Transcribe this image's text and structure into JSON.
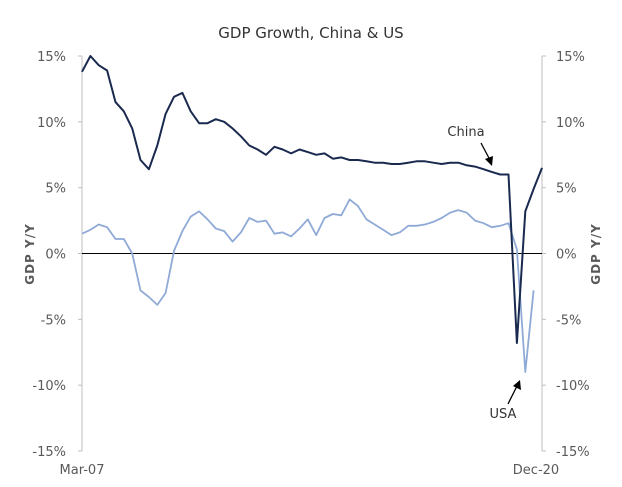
{
  "chart_data": {
    "type": "line",
    "title": "GDP Growth, China & US",
    "ylabel_left": "GDP Y/Y",
    "ylabel_right": "GDP Y/Y",
    "ylim": [
      -15,
      15
    ],
    "yticks": [
      "15%",
      "10%",
      "5%",
      "0%",
      "-5%",
      "-10%",
      "-15%"
    ],
    "yticks_right": [
      "15%",
      "10%",
      "5%",
      "0%",
      "-5%",
      "-10%",
      "-15%"
    ],
    "x_first_label": "Mar-07",
    "x_last_label": "Dec-20",
    "grid": false,
    "zero_line": true,
    "colors": {
      "china": "#1a2a4f",
      "usa": "#8faad6",
      "axis": "#bfbfbf",
      "zero": "#000000"
    },
    "annotations": {
      "china": "China",
      "usa": "USA"
    },
    "x_start": "2007-Q1",
    "x_end": "2020-Q4",
    "series": [
      {
        "key": "china",
        "values": [
          13.8,
          15.0,
          14.3,
          13.9,
          11.5,
          10.8,
          9.5,
          7.1,
          6.4,
          8.2,
          10.6,
          11.9,
          12.2,
          10.8,
          9.9,
          9.9,
          10.2,
          10.0,
          9.5,
          8.9,
          8.2,
          7.9,
          7.5,
          8.1,
          7.9,
          7.6,
          7.9,
          7.7,
          7.5,
          7.6,
          7.2,
          7.3,
          7.1,
          7.1,
          7.0,
          6.9,
          6.9,
          6.8,
          6.8,
          6.9,
          7.0,
          7.0,
          6.9,
          6.8,
          6.9,
          6.9,
          6.7,
          6.6,
          6.4,
          6.2,
          6.0,
          6.0,
          -6.8,
          3.2,
          4.9,
          6.5
        ]
      },
      {
        "key": "usa",
        "values": [
          1.5,
          1.8,
          2.2,
          2.0,
          1.1,
          1.1,
          0.0,
          -2.8,
          -3.3,
          -3.9,
          -3.0,
          0.2,
          1.7,
          2.8,
          3.2,
          2.6,
          1.9,
          1.7,
          0.9,
          1.6,
          2.7,
          2.4,
          2.5,
          1.5,
          1.6,
          1.3,
          1.9,
          2.6,
          1.4,
          2.7,
          3.0,
          2.9,
          4.1,
          3.6,
          2.6,
          2.2,
          1.8,
          1.4,
          1.6,
          2.1,
          2.1,
          2.2,
          2.4,
          2.7,
          3.1,
          3.3,
          3.1,
          2.5,
          2.3,
          2.0,
          2.1,
          2.3,
          0.3,
          -9.0,
          -2.8
        ]
      }
    ]
  }
}
